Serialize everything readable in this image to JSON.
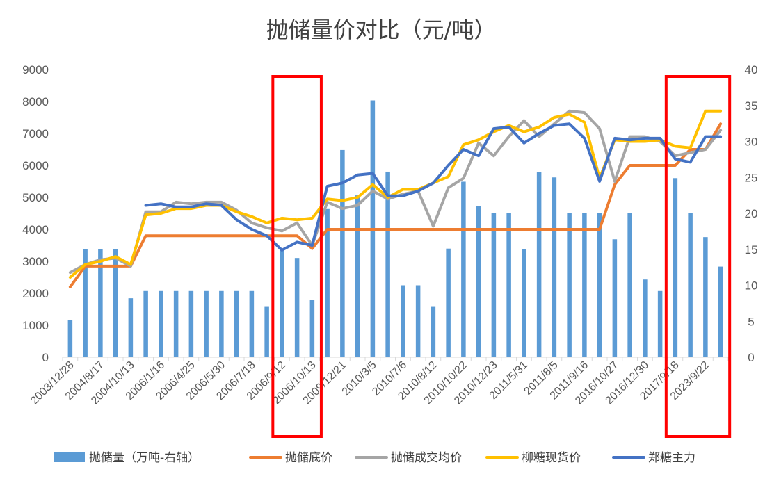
{
  "chart_data": {
    "type": "bar+line",
    "title": "抛储量价对比（元/吨）",
    "categories": [
      "2003/12/28",
      "",
      "2004/8/17",
      "",
      "2004/10/13",
      "",
      "2006/1/16",
      "",
      "2006/4/25",
      "",
      "2006/5/30",
      "",
      "2006/7/18",
      "",
      "2006/9/12",
      "",
      "2006/10/13",
      "",
      "2009/12/21",
      "",
      "2010/3/5",
      "",
      "2010/7/6",
      "",
      "2010/8/12",
      "",
      "2010/10/22",
      "",
      "2010/12/23",
      "",
      "2011/5/31",
      "",
      "2011/8/5",
      "",
      "2011/9/16",
      "",
      "2016/10/27",
      "",
      "2016/12/30",
      "",
      "2017/9/18",
      "",
      "2023/9/22",
      ""
    ],
    "y_left": {
      "min": 0,
      "max": 9000,
      "ticks": [
        "0",
        "1000",
        "2000",
        "3000",
        "4000",
        "5000",
        "6000",
        "7000",
        "8000",
        "9000"
      ]
    },
    "y_right": {
      "min": 0,
      "max": 40,
      "ticks": [
        "0",
        "5",
        "10",
        "15",
        "20",
        "25",
        "30",
        "35",
        "40"
      ]
    },
    "series": [
      {
        "name": "抛储量（万吨-右轴）",
        "type": "bar",
        "axis": "right",
        "color": "#5B9BD5",
        "values": [
          5.2,
          15,
          15,
          15,
          8.2,
          9.2,
          9.2,
          9.2,
          9.2,
          9.2,
          9.2,
          9.2,
          9.2,
          7,
          15,
          13.8,
          8,
          20.6,
          28.8,
          22.5,
          35.7,
          25.8,
          10,
          10,
          7,
          15.1,
          24.4,
          21,
          20,
          20,
          15,
          25.7,
          25,
          20,
          20,
          20,
          16.4,
          20,
          10.8,
          9.2,
          24.9,
          20,
          16.7,
          12.6
        ]
      },
      {
        "name": "抛储底价",
        "type": "line",
        "axis": "left",
        "color": "#ED7D31",
        "values": [
          2200,
          2850,
          2850,
          2850,
          2850,
          3800,
          3800,
          3800,
          3800,
          3800,
          3800,
          3800,
          3800,
          3800,
          3800,
          3800,
          3400,
          4000,
          4000,
          4000,
          4000,
          4000,
          4000,
          4000,
          4000,
          4000,
          4000,
          4000,
          4000,
          4000,
          4000,
          4000,
          4000,
          4000,
          4000,
          4000,
          5400,
          6000,
          6000,
          6000,
          6000,
          6500,
          6500,
          7300
        ]
      },
      {
        "name": "抛储成交均价",
        "type": "line",
        "axis": "left",
        "color": "#A5A5A5",
        "values": [
          2650,
          2900,
          3050,
          3100,
          2850,
          4550,
          4550,
          4850,
          4800,
          4850,
          4850,
          4600,
          4200,
          4050,
          3950,
          4200,
          3500,
          4850,
          4650,
          4750,
          5200,
          4950,
          5100,
          5200,
          4100,
          5300,
          5600,
          6700,
          6300,
          6900,
          7400,
          6900,
          7300,
          7700,
          7650,
          7150,
          5500,
          6900,
          6900,
          6750,
          6300,
          6400,
          6500,
          7100
        ]
      },
      {
        "name": "柳糖现货价",
        "type": "line",
        "axis": "left",
        "color": "#FFC000",
        "values": [
          2500,
          2900,
          3000,
          3150,
          2900,
          4450,
          4500,
          4650,
          4650,
          4750,
          4750,
          4550,
          4400,
          4200,
          4350,
          4300,
          4350,
          4950,
          4900,
          5000,
          5400,
          5000,
          5250,
          5250,
          5450,
          5650,
          6650,
          6800,
          7050,
          7250,
          7050,
          7200,
          7500,
          7600,
          7350,
          5600,
          6800,
          6750,
          6750,
          6800,
          6600,
          6550,
          7700,
          7700
        ]
      },
      {
        "name": "郑糖主力",
        "type": "line",
        "axis": "left",
        "color": "#4472C4",
        "values": [
          null,
          null,
          null,
          null,
          null,
          4750,
          4800,
          4700,
          4700,
          4800,
          4750,
          4300,
          4000,
          3800,
          3350,
          3600,
          3500,
          5350,
          5450,
          5700,
          5750,
          5050,
          5050,
          5200,
          5450,
          6000,
          6500,
          6300,
          7150,
          7200,
          6700,
          7000,
          7250,
          7300,
          6850,
          5500,
          6850,
          6800,
          6850,
          6850,
          6200,
          6100,
          6900,
          6900
        ]
      }
    ],
    "legend_position": "bottom",
    "grid": false,
    "highlight_boxes": [
      {
        "from_category": 14,
        "to_category": 16,
        "color": "#FF0000"
      },
      {
        "from_category": 40,
        "to_category": 43,
        "color": "#FF0000"
      }
    ]
  }
}
